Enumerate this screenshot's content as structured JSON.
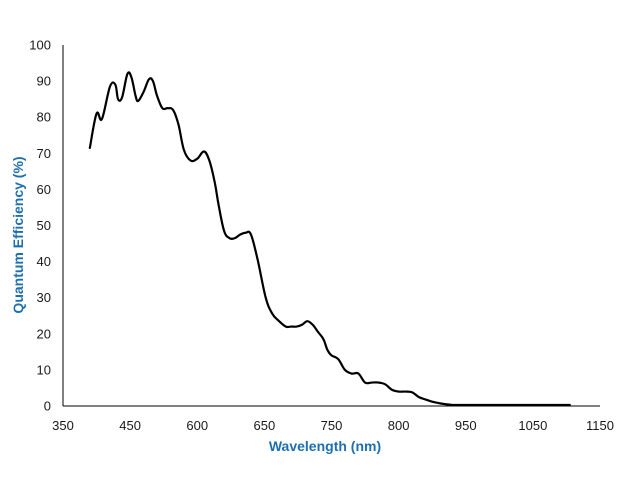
{
  "chart_data": {
    "type": "line",
    "title": "",
    "xlabel": "Wavelength (nm)",
    "ylabel": "Quantum Efficiency (%)",
    "xlim": [
      350,
      1150
    ],
    "ylim": [
      0,
      100
    ],
    "xticks": [
      350,
      450,
      600,
      650,
      750,
      800,
      950,
      1050,
      1150
    ],
    "x_tick_positions": [
      0,
      1,
      2,
      3,
      4,
      5,
      6,
      7,
      8
    ],
    "yticks": [
      0,
      10,
      20,
      30,
      40,
      50,
      60,
      70,
      80,
      90,
      100
    ],
    "grid": false,
    "legend": "none",
    "colors": {
      "line": "#000000",
      "axis_title": "#1f6fb0",
      "axis": "#000000"
    },
    "series": [
      {
        "x": [
          0.4,
          0.5,
          0.58,
          0.7,
          0.78,
          0.82,
          0.88,
          0.96,
          1.02,
          1.08,
          1.12,
          1.2,
          1.28,
          1.34,
          1.4,
          1.48,
          1.56,
          1.64,
          1.72,
          1.8,
          1.9,
          2.0,
          2.1,
          2.18,
          2.26,
          2.32,
          2.4,
          2.48,
          2.56,
          2.64,
          2.72,
          2.8,
          2.9,
          3.02,
          3.12,
          3.22,
          3.32,
          3.4,
          3.48,
          3.56,
          3.64,
          3.72,
          3.8,
          3.88,
          3.94,
          4.0,
          4.1,
          4.2,
          4.3,
          4.4,
          4.5,
          4.6,
          4.7,
          4.8,
          4.9,
          5.0,
          5.1,
          5.2,
          5.3,
          5.4,
          5.5,
          5.6,
          5.7,
          5.8,
          5.9,
          6.0,
          6.1,
          6.2,
          6.3,
          6.4,
          6.5,
          6.6,
          6.7,
          6.8,
          6.9,
          7.0,
          7.1,
          7.2,
          7.3,
          7.4,
          7.5,
          7.55
        ],
        "y": [
          71.5,
          81.0,
          79.5,
          88.5,
          89.0,
          85.0,
          85.5,
          92.0,
          91.0,
          86.0,
          84.5,
          87.0,
          90.5,
          90.0,
          86.0,
          82.5,
          82.5,
          82.0,
          78.0,
          71.0,
          68.0,
          68.5,
          70.5,
          68.0,
          62.0,
          55.5,
          48.5,
          46.5,
          46.5,
          47.5,
          48.0,
          47.5,
          40.5,
          30.0,
          25.5,
          23.5,
          22.0,
          22.0,
          22.0,
          22.5,
          23.5,
          22.5,
          20.5,
          18.5,
          15.5,
          14.0,
          13.0,
          10.0,
          9.0,
          9.0,
          6.5,
          6.5,
          6.5,
          6.0,
          4.5,
          4.0,
          4.0,
          3.8,
          2.5,
          1.8,
          1.2,
          0.8,
          0.5,
          0.3,
          0.3,
          0.3,
          0.3,
          0.3,
          0.3,
          0.3,
          0.3,
          0.3,
          0.3,
          0.3,
          0.3,
          0.3,
          0.3,
          0.3,
          0.3,
          0.3,
          0.3,
          0.3
        ]
      }
    ]
  }
}
